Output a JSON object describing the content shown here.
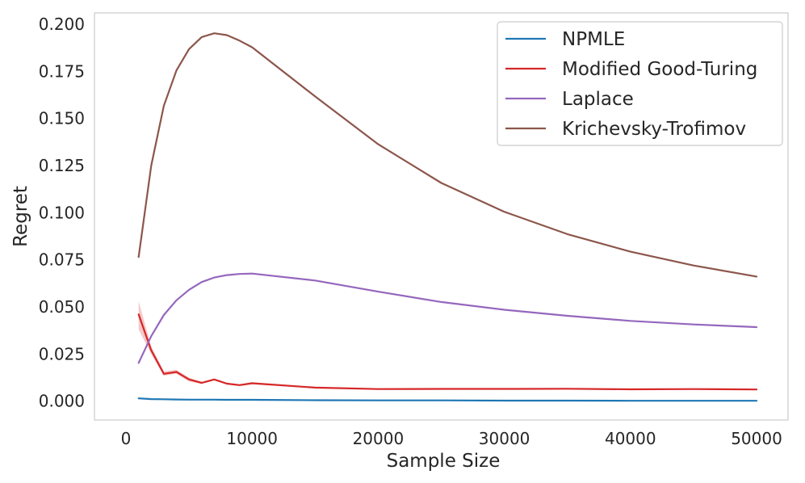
{
  "chart_data": {
    "type": "line",
    "title": "",
    "xlabel": "Sample Size",
    "ylabel": "Regret",
    "xlim": [
      -2500,
      52500
    ],
    "ylim": [
      -0.01,
      0.206
    ],
    "xticks": [
      0,
      10000,
      20000,
      30000,
      40000,
      50000
    ],
    "xtick_labels": [
      "0",
      "10000",
      "20000",
      "30000",
      "40000",
      "50000"
    ],
    "yticks": [
      0.0,
      0.025,
      0.05,
      0.075,
      0.1,
      0.125,
      0.15,
      0.175,
      0.2
    ],
    "ytick_labels": [
      "0.000",
      "0.025",
      "0.050",
      "0.075",
      "0.100",
      "0.125",
      "0.150",
      "0.175",
      "0.200"
    ],
    "grid": false,
    "legend_position": "top-right",
    "series": [
      {
        "name": "NPMLE",
        "color": "#1f77b4",
        "x": [
          1000,
          2000,
          3000,
          4000,
          5000,
          6000,
          7000,
          8000,
          9000,
          10000,
          15000,
          20000,
          25000,
          30000,
          35000,
          40000,
          45000,
          50000
        ],
        "values": [
          0.0015,
          0.0011,
          0.001,
          0.0009,
          0.0008,
          0.0008,
          0.0008,
          0.0007,
          0.0007,
          0.0007,
          0.0005,
          0.0004,
          0.0004,
          0.0003,
          0.0003,
          0.0002,
          0.0002,
          0.0002
        ]
      },
      {
        "name": "Modified Good-Turing",
        "color": "#d62728",
        "x": [
          1000,
          2000,
          3000,
          4000,
          5000,
          6000,
          7000,
          8000,
          9000,
          10000,
          15000,
          20000,
          25000,
          30000,
          35000,
          40000,
          45000,
          50000
        ],
        "values": [
          0.046,
          0.027,
          0.0145,
          0.0155,
          0.0115,
          0.0097,
          0.0115,
          0.0093,
          0.0085,
          0.0095,
          0.0072,
          0.0064,
          0.0065,
          0.0065,
          0.0066,
          0.0063,
          0.0064,
          0.0062
        ],
        "band_low": [
          0.038,
          0.025,
          0.0135,
          0.0145,
          0.0105,
          0.0092,
          0.011,
          0.0088,
          0.008,
          0.009,
          0.0069,
          0.0062,
          0.0063,
          0.0063,
          0.0064,
          0.0061,
          0.0062,
          0.006
        ],
        "band_high": [
          0.053,
          0.029,
          0.0158,
          0.0166,
          0.0125,
          0.0102,
          0.012,
          0.0098,
          0.009,
          0.01,
          0.0075,
          0.0066,
          0.0067,
          0.0067,
          0.0068,
          0.0065,
          0.0066,
          0.0064
        ]
      },
      {
        "name": "Laplace",
        "color": "#9467bd",
        "x": [
          1000,
          2000,
          3000,
          4000,
          5000,
          6000,
          7000,
          8000,
          9000,
          10000,
          15000,
          20000,
          25000,
          30000,
          35000,
          40000,
          45000,
          50000
        ],
        "values": [
          0.0203,
          0.0345,
          0.0457,
          0.0535,
          0.0591,
          0.0632,
          0.0656,
          0.0669,
          0.0675,
          0.0677,
          0.064,
          0.0581,
          0.0526,
          0.0485,
          0.0453,
          0.0426,
          0.0407,
          0.0393
        ]
      },
      {
        "name": "Krichevsky-Trofimov",
        "color": "#8c564b",
        "x": [
          1000,
          2000,
          3000,
          4000,
          5000,
          6000,
          7000,
          8000,
          9000,
          10000,
          15000,
          20000,
          25000,
          30000,
          35000,
          40000,
          45000,
          50000
        ],
        "values": [
          0.0765,
          0.125,
          0.1567,
          0.1755,
          0.1868,
          0.1932,
          0.1952,
          0.1942,
          0.1913,
          0.1878,
          0.1617,
          0.1363,
          0.1158,
          0.1005,
          0.0886,
          0.0793,
          0.072,
          0.0661
        ]
      }
    ]
  }
}
